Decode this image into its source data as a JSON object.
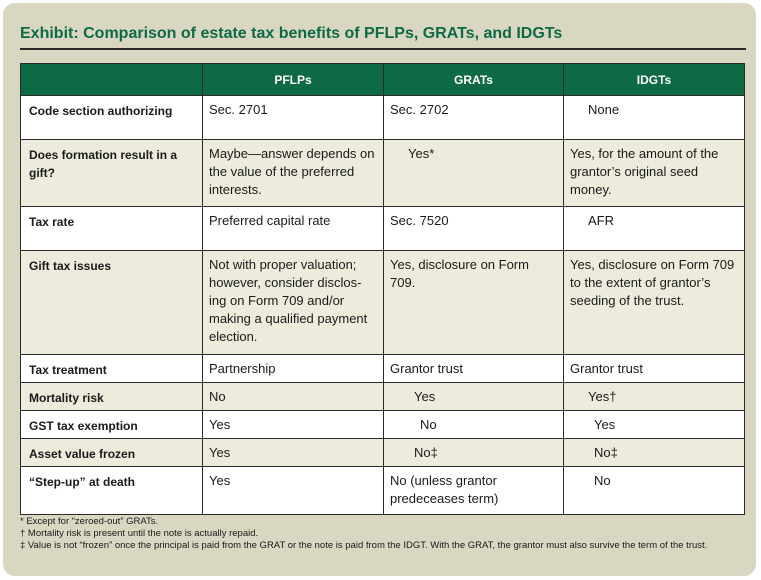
{
  "title": "Exhibit: Comparison of estate tax benefits of PFLPs, GRATs, and IDGTs",
  "columns": [
    "",
    "PFLPs",
    "GRATs",
    "IDGTs"
  ],
  "rows": [
    {
      "label": "Code section authorizing",
      "pflp": "Sec. 2701",
      "grat": "Sec. 2702",
      "idgt": "None"
    },
    {
      "label": "Does formation result in a gift?",
      "pflp": "Maybe—answer depends on the value of the preferred interests.",
      "grat": "Yes*",
      "idgt": "Yes, for the amount of the grantor’s original seed money."
    },
    {
      "label": "Tax rate",
      "pflp": "Preferred capital rate",
      "grat": "Sec. 7520",
      "idgt": "AFR"
    },
    {
      "label": "Gift tax issues",
      "pflp": "Not with proper valuation; however, consider disclos-ing on Form 709 and/or making a qualified payment election.",
      "grat": "Yes, disclosure on Form 709.",
      "idgt": "Yes, disclosure on Form 709 to the extent of grantor’s seeding of the trust."
    },
    {
      "label": "Tax treatment",
      "pflp": "Partnership",
      "grat": "Grantor trust",
      "idgt": "Grantor trust"
    },
    {
      "label": "Mortality risk",
      "pflp": "No",
      "grat": "Yes",
      "idgt": "Yes†"
    },
    {
      "label": "GST tax exemption",
      "pflp": "Yes",
      "grat": "No",
      "idgt": "Yes"
    },
    {
      "label": "Asset value frozen",
      "pflp": "Yes",
      "grat": "No‡",
      "idgt": "No‡"
    },
    {
      "label": "“Step-up” at death",
      "pflp": "Yes",
      "grat": "No (unless grantor predeceases term)",
      "idgt": "No"
    }
  ],
  "footnotes": [
    "* Except for “zeroed-out” GRATs.",
    "† Mortality risk is present until the note is actually repaid.",
    "‡ Value is not “frozen” once the principal is paid from the GRAT or the note is paid from the IDGT. With the GRAT, the grantor must also survive the term of the trust."
  ]
}
